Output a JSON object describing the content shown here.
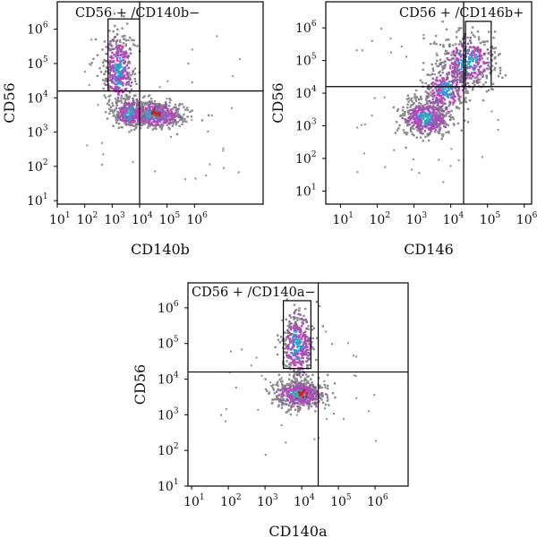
{
  "colors": {
    "density_scale": [
      "#8c8c8c",
      "#8a5fa0",
      "#c040c0",
      "#2a9fd6",
      "#2fcf8f",
      "#d21f1f"
    ],
    "frame": "#000000"
  },
  "chart_data": [
    {
      "type": "scatter",
      "xlabel": "CD140b",
      "ylabel": "CD56",
      "gate_label": "CD56 + /CD140b−",
      "log_scale": true,
      "xlim": [
        1,
        8.5
      ],
      "ylim": [
        0.9,
        6.8
      ],
      "x_ticks": [
        1,
        2,
        3,
        4,
        5,
        6
      ],
      "y_ticks": [
        1,
        2,
        3,
        4,
        5,
        6
      ],
      "tick_base": "10",
      "quadrant_x": 4.0,
      "quadrant_y": 4.2,
      "gate": {
        "x": [
          2.85,
          4.0
        ],
        "y": [
          4.2,
          6.3
        ]
      },
      "populations": [
        {
          "cx": 3.2,
          "cy": 4.85,
          "sx": 0.28,
          "sy": 0.55,
          "n": 420,
          "core": 0.2,
          "hot": false
        },
        {
          "cx": 4.5,
          "cy": 3.55,
          "sx": 0.55,
          "sy": 0.2,
          "n": 560,
          "core": 0.35,
          "hot": true
        },
        {
          "cx": 3.6,
          "cy": 3.6,
          "sx": 0.3,
          "sy": 0.22,
          "n": 220,
          "core": 0.25,
          "hot": false
        }
      ]
    },
    {
      "type": "scatter",
      "xlabel": "CD146",
      "ylabel": "CD56",
      "gate_label": "CD56 + /CD146b+",
      "log_scale": true,
      "xlim": [
        0.6,
        6.2
      ],
      "ylim": [
        0.6,
        6.8
      ],
      "x_ticks": [
        1,
        2,
        3,
        4,
        5,
        6
      ],
      "y_ticks": [
        1,
        2,
        3,
        4,
        5,
        6
      ],
      "tick_base": "10",
      "quadrant_x": 4.35,
      "quadrant_y": 4.2,
      "gate": {
        "x": [
          4.4,
          5.1
        ],
        "y": [
          4.2,
          6.2
        ]
      },
      "populations": [
        {
          "cx": 3.3,
          "cy": 3.3,
          "sx": 0.35,
          "sy": 0.3,
          "n": 520,
          "core": 0.35,
          "hot": false
        },
        {
          "cx": 4.4,
          "cy": 5.0,
          "sx": 0.4,
          "sy": 0.4,
          "n": 420,
          "core": 0.15,
          "hot": false
        },
        {
          "cx": 3.85,
          "cy": 4.15,
          "sx": 0.3,
          "sy": 0.35,
          "n": 260,
          "core": 0.1,
          "hot": false
        }
      ]
    },
    {
      "type": "scatter",
      "xlabel": "CD140a",
      "ylabel": "CD56",
      "gate_label": "CD56 + /CD140a−",
      "log_scale": true,
      "xlim": [
        0.9,
        6.9
      ],
      "ylim": [
        1.0,
        6.7
      ],
      "x_ticks": [
        1,
        2,
        3,
        4,
        5,
        6
      ],
      "y_ticks": [
        1,
        2,
        3,
        4,
        5,
        6
      ],
      "tick_base": "10",
      "quadrant_x": 4.45,
      "quadrant_y": 4.2,
      "gate": {
        "x": [
          3.5,
          4.25
        ],
        "y": [
          4.3,
          6.2
        ]
      },
      "populations": [
        {
          "cx": 3.85,
          "cy": 5.0,
          "sx": 0.22,
          "sy": 0.5,
          "n": 380,
          "core": 0.15,
          "hot": false
        },
        {
          "cx": 3.9,
          "cy": 3.6,
          "sx": 0.35,
          "sy": 0.2,
          "n": 520,
          "core": 0.35,
          "hot": true
        }
      ]
    }
  ]
}
